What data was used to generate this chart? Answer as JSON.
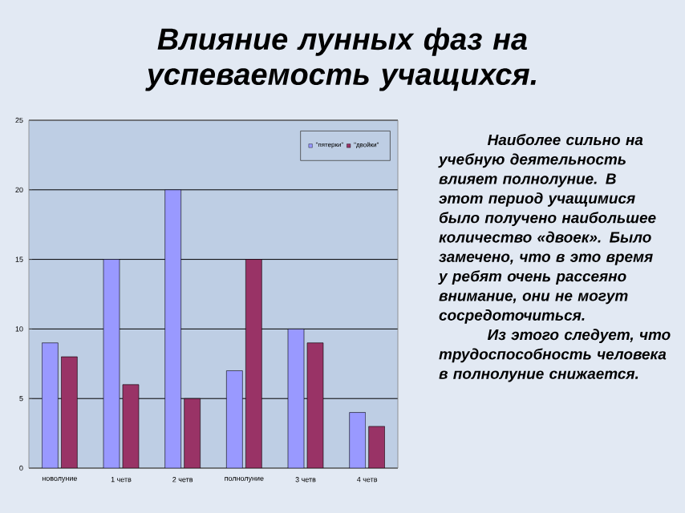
{
  "chart_data": {
    "type": "bar",
    "title": "Влияние лунных фаз на успеваемость учащихся.",
    "categories": [
      "новолуние",
      "1 четв",
      "2 четв",
      "полнолуние",
      "3 четв",
      "4 четв"
    ],
    "series": [
      {
        "name": "\"пятерки\"",
        "color": "#9999ff",
        "values": [
          9,
          15,
          20,
          7,
          10,
          4
        ]
      },
      {
        "name": "\"двойки\"",
        "color": "#993366",
        "values": [
          8,
          6,
          5,
          15,
          9,
          3
        ]
      }
    ],
    "ylim": [
      0,
      25
    ],
    "yticks": [
      0,
      5,
      10,
      15,
      20,
      25
    ],
    "grid": "y",
    "legend": "top right",
    "annotations": [
      "Наиболее сильно на учебную деятельность влияет полнолуние. В этот период учащимися было получено наибольшее количество «двоек». Было замечено, что в это время у ребят очень рассеяно внимание, они не могут сосредоточиться.",
      "Из этого следует, что трудоспособность человека в полнолуние снижается."
    ]
  }
}
